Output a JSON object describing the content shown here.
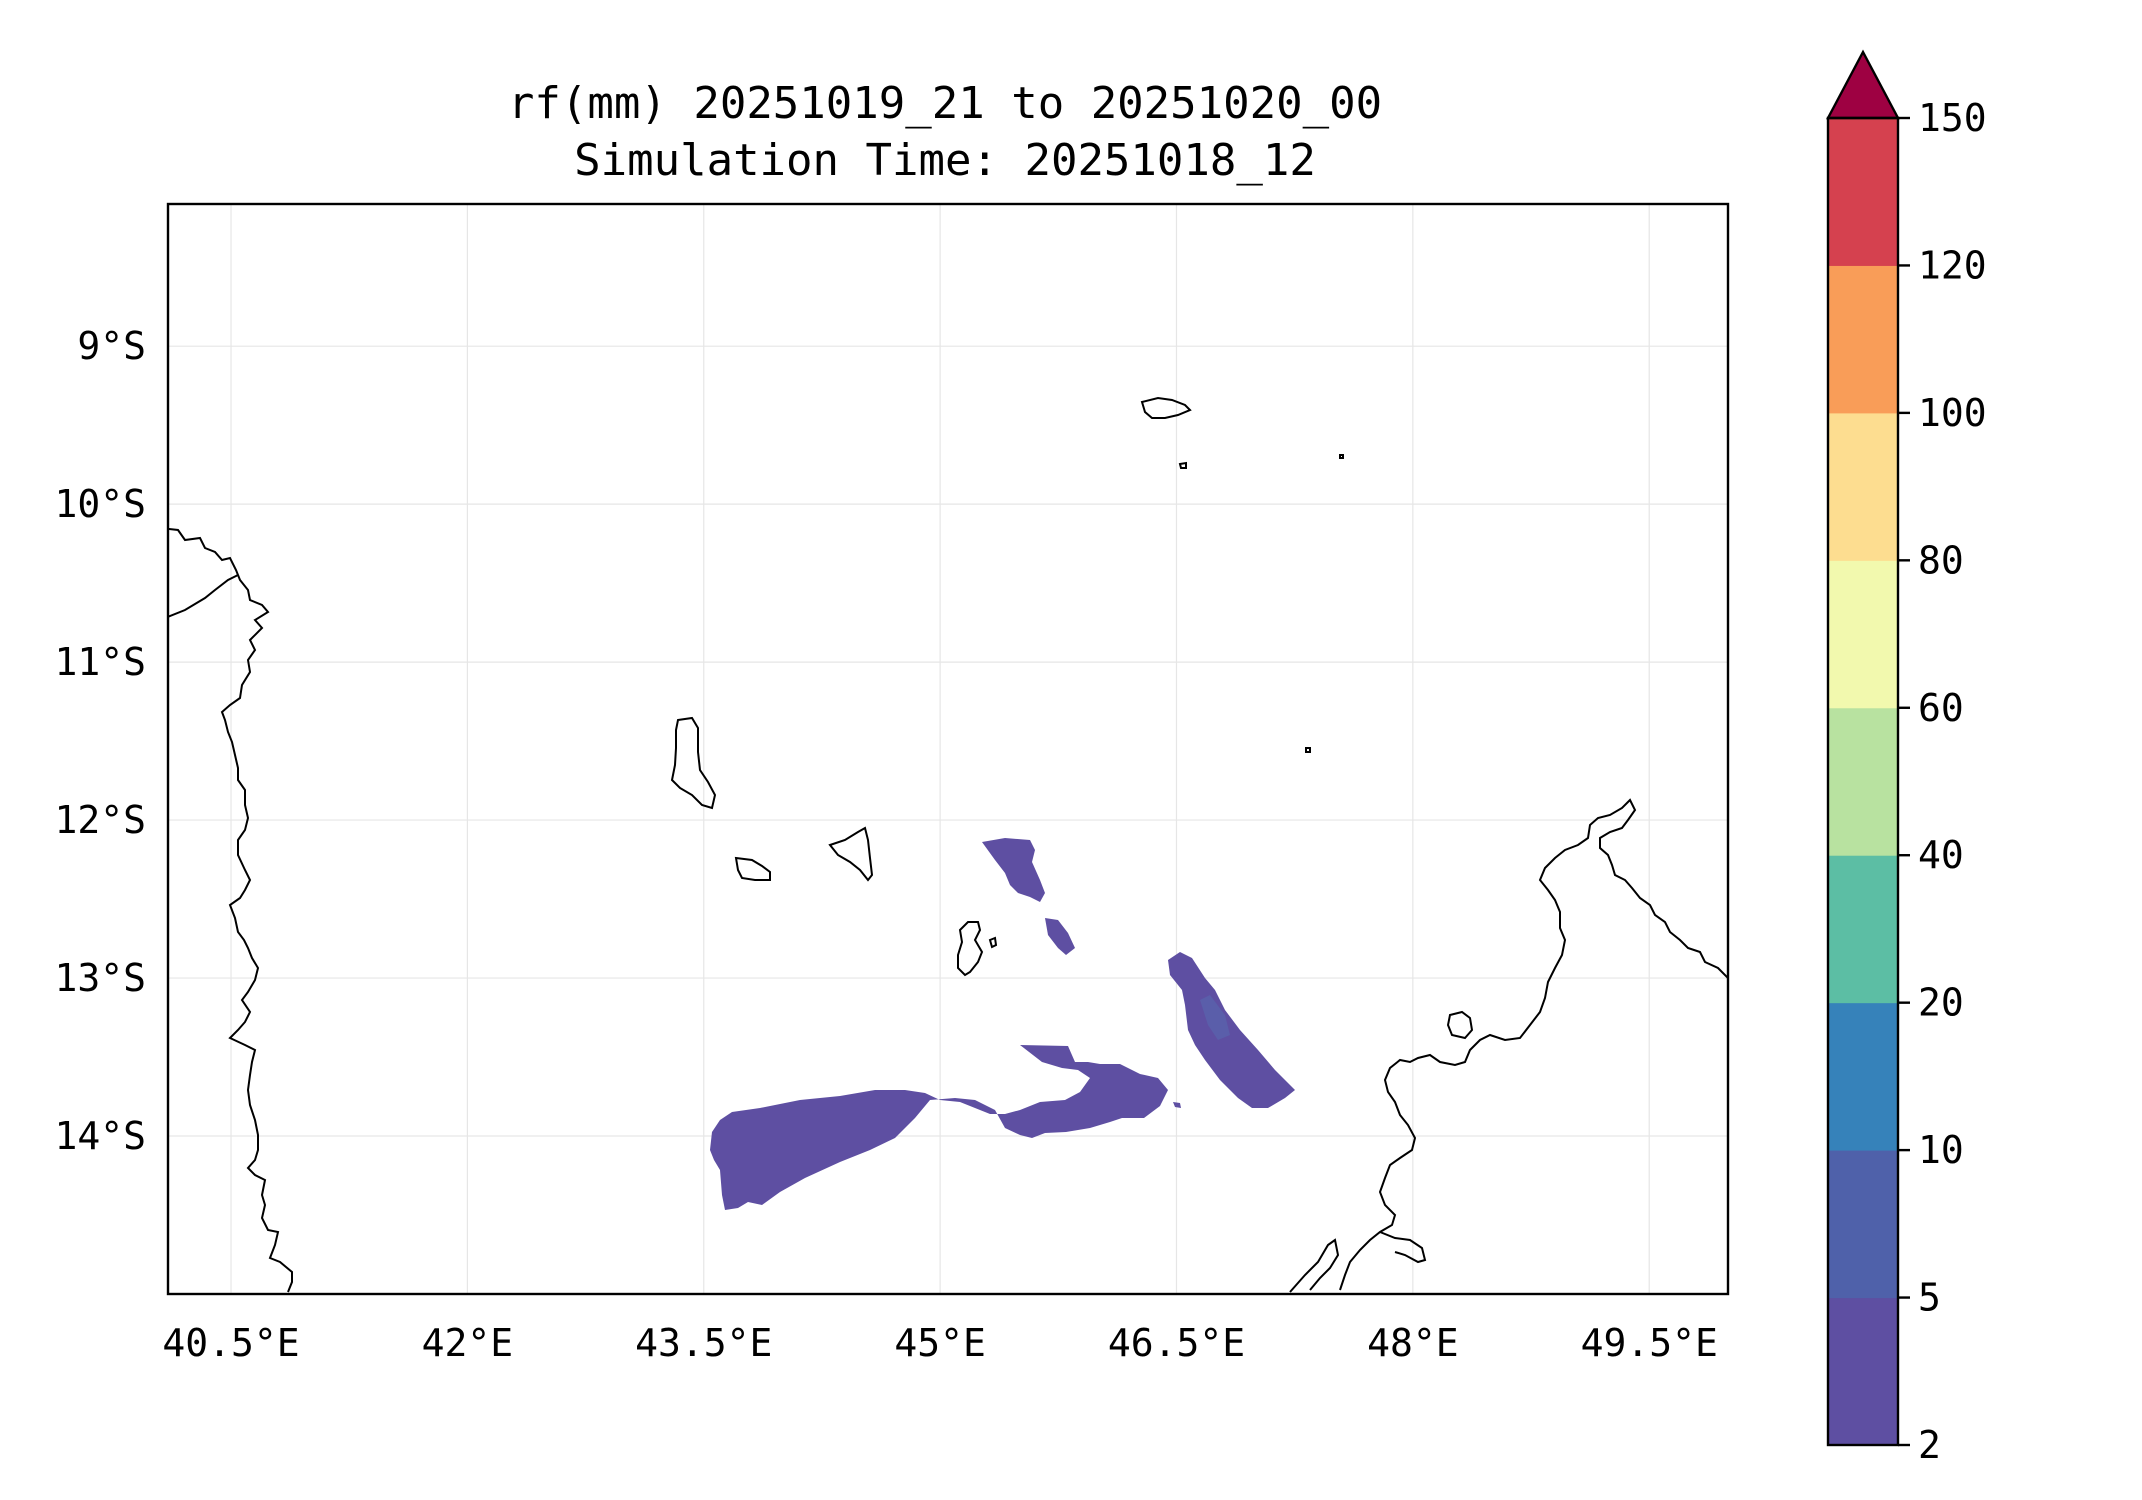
{
  "title": {
    "line1": "rf(mm) 20251019_21 to 20251020_00",
    "line2": "Simulation Time: 20251018_12"
  },
  "map": {
    "lon_range": [
      40.1,
      50.0
    ],
    "lat_range": [
      -15.0,
      -8.1
    ],
    "lon_ticks": [
      40.5,
      42,
      43.5,
      45,
      46.5,
      48,
      49.5
    ],
    "lon_labels": [
      "40.5°E",
      "42°E",
      "43.5°E",
      "45°E",
      "46.5°E",
      "48°E",
      "49.5°E"
    ],
    "lat_ticks": [
      -9,
      -10,
      -11,
      -12,
      -13,
      -14
    ],
    "lat_labels": [
      "9°S",
      "10°S",
      "11°S",
      "12°S",
      "13°S",
      "14°S"
    ],
    "gridlines": true
  },
  "colorbar": {
    "levels": [
      2,
      5,
      10,
      20,
      40,
      60,
      80,
      100,
      120,
      150
    ],
    "labels": [
      "2",
      "5",
      "10",
      "20",
      "40",
      "60",
      "80",
      "100",
      "120",
      "150"
    ],
    "colors": [
      "#5e4fa2",
      "#4f61aa",
      "#3682ba",
      "#5cbea4",
      "#b8e2a0",
      "#f2f9ae",
      "#fddd90",
      "#f99d58",
      "#d5414f"
    ],
    "extend_color": "#9e0142",
    "extend": "max"
  },
  "rain_features": [
    {
      "name": "rain-patch-north",
      "band": "2-5"
    },
    {
      "name": "rain-patch-small",
      "band": "2-5"
    },
    {
      "name": "rain-patch-east-band",
      "band": "2-5"
    },
    {
      "name": "rain-patch-south",
      "band": "2-5"
    }
  ]
}
